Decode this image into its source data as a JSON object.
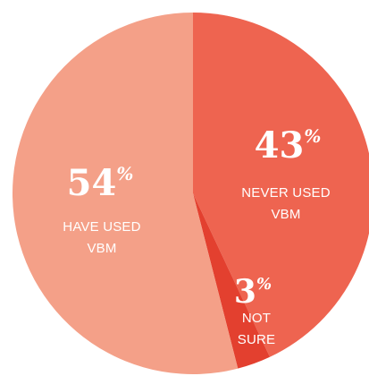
{
  "chart_data": {
    "type": "pie",
    "slices": [
      {
        "value": 43,
        "percent_text": "43",
        "label_lines": [
          "NEVER USED",
          "VBM"
        ],
        "color": "#EE6450"
      },
      {
        "value": 3,
        "percent_text": "3",
        "label_lines": [
          "NOT",
          "SURE"
        ],
        "color": "#E3402F"
      },
      {
        "value": 54,
        "percent_text": "54",
        "label_lines": [
          "HAVE USED",
          "VBM"
        ],
        "color": "#F4A088"
      }
    ],
    "percent_symbol": "%",
    "start_angle": "12 o'clock",
    "direction": "clockwise"
  }
}
